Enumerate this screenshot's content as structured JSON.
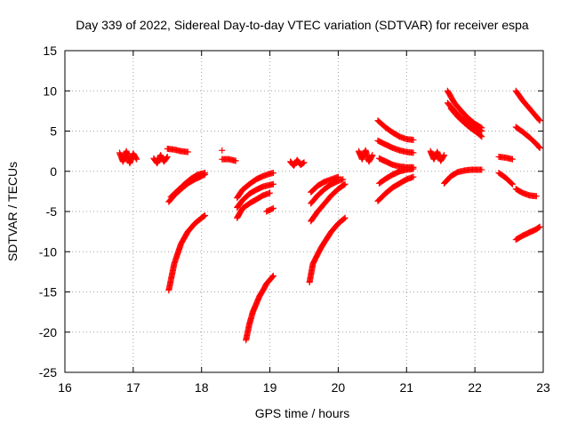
{
  "chart_data": {
    "type": "scatter",
    "title": "Day 339 of 2022, Sidereal Day-to-day VTEC variation (SDTVAR) for receiver espa",
    "xlabel": "GPS time / hours",
    "ylabel": "SDTVAR / TECUs",
    "xlim": [
      16,
      23
    ],
    "ylim": [
      -25,
      15
    ],
    "xticks": [
      "16",
      "17",
      "18",
      "19",
      "20",
      "21",
      "22",
      "23"
    ],
    "yticks": [
      "-25",
      "-20",
      "-15",
      "-10",
      "-5",
      "0",
      "5",
      "10",
      "15"
    ],
    "grid": true,
    "marker": "plus",
    "color": "#ff0000",
    "series": [
      {
        "name": "s1",
        "x": [
          16.8,
          16.85,
          16.9,
          16.95,
          17.0,
          17.05
        ],
        "y": [
          2.3,
          1.2,
          2.5,
          1.0,
          2.2,
          1.5
        ]
      },
      {
        "name": "s2",
        "x": [
          17.3,
          17.35,
          17.4,
          17.45,
          17.5
        ],
        "y": [
          1.6,
          1.0,
          2.0,
          1.2,
          1.8
        ]
      },
      {
        "name": "s3",
        "x": [
          17.5,
          17.6,
          17.7,
          17.8
        ],
        "y": [
          2.8,
          2.7,
          2.5,
          2.4
        ]
      },
      {
        "name": "s4",
        "x": [
          17.52,
          17.6,
          17.7,
          17.8,
          17.9,
          18.0,
          18.05
        ],
        "y": [
          -3.8,
          -3.0,
          -2.2,
          -1.5,
          -1.0,
          -0.6,
          -0.4
        ]
      },
      {
        "name": "s5",
        "x": [
          17.55,
          17.65,
          17.75,
          17.85,
          17.95,
          18.05
        ],
        "y": [
          -3.2,
          -2.4,
          -1.6,
          -0.9,
          -0.4,
          -0.2
        ]
      },
      {
        "name": "s6",
        "x": [
          17.52,
          17.6,
          17.7,
          17.8,
          17.9,
          18.0,
          18.05
        ],
        "y": [
          -14.8,
          -11.5,
          -9.0,
          -7.5,
          -6.5,
          -5.8,
          -5.5
        ]
      },
      {
        "name": "s7",
        "x": [
          18.3,
          18.4,
          18.5
        ],
        "y": [
          1.5,
          1.5,
          1.3
        ]
      },
      {
        "name": "s8",
        "x": [
          18.3
        ],
        "y": [
          2.6
        ]
      },
      {
        "name": "s9",
        "x": [
          18.52,
          18.6,
          18.7,
          18.8,
          18.9,
          19.0,
          19.05
        ],
        "y": [
          -3.3,
          -2.3,
          -1.6,
          -1.0,
          -0.6,
          -0.3,
          -0.2
        ]
      },
      {
        "name": "s10",
        "x": [
          18.52,
          18.6,
          18.7,
          18.8,
          18.9,
          19.0,
          19.05
        ],
        "y": [
          -4.5,
          -3.6,
          -2.8,
          -2.3,
          -1.9,
          -1.7,
          -1.6
        ]
      },
      {
        "name": "s11",
        "x": [
          18.52,
          18.6,
          18.7,
          18.8,
          18.9,
          19.0
        ],
        "y": [
          -5.8,
          -4.6,
          -4.0,
          -3.5,
          -3.0,
          -2.7
        ]
      },
      {
        "name": "s12",
        "x": [
          18.95,
          19.0,
          19.05
        ],
        "y": [
          -5.0,
          -4.8,
          -4.6
        ]
      },
      {
        "name": "s13",
        "x": [
          18.65,
          18.7,
          18.75,
          18.8,
          18.85,
          18.9,
          18.95,
          19.0,
          19.05
        ],
        "y": [
          -21.0,
          -19.0,
          -17.5,
          -16.5,
          -15.5,
          -14.8,
          -14.0,
          -13.5,
          -13.0
        ]
      },
      {
        "name": "s14",
        "x": [
          19.3,
          19.35,
          19.4,
          19.45,
          19.5
        ],
        "y": [
          1.2,
          0.7,
          1.4,
          0.8,
          1.1
        ]
      },
      {
        "name": "s15",
        "x": [
          19.6,
          19.7,
          19.8,
          19.9,
          20.0
        ],
        "y": [
          -2.6,
          -1.8,
          -1.3,
          -1.0,
          -0.7
        ]
      },
      {
        "name": "s16",
        "x": [
          19.6,
          19.7,
          19.8,
          19.9,
          20.0,
          20.07
        ],
        "y": [
          -4.0,
          -3.0,
          -2.2,
          -1.6,
          -1.2,
          -1.0
        ]
      },
      {
        "name": "s17",
        "x": [
          19.6,
          19.7,
          19.8,
          19.9,
          20.0,
          20.1
        ],
        "y": [
          -6.2,
          -5.0,
          -4.0,
          -3.0,
          -2.2,
          -1.6
        ]
      },
      {
        "name": "s18",
        "x": [
          19.58,
          19.63,
          19.7,
          19.75,
          19.8,
          19.9,
          20.0,
          20.1
        ],
        "y": [
          -13.8,
          -11.5,
          -10.3,
          -9.5,
          -8.8,
          -7.5,
          -6.5,
          -5.8
        ]
      },
      {
        "name": "s19",
        "x": [
          20.3,
          20.35,
          20.4,
          20.45,
          20.5
        ],
        "y": [
          2.5,
          1.5,
          2.6,
          1.2,
          2.0
        ]
      },
      {
        "name": "s20",
        "x": [
          20.58,
          20.7,
          20.8,
          20.9,
          21.0,
          21.1
        ],
        "y": [
          6.3,
          5.4,
          4.8,
          4.3,
          4.0,
          3.9
        ]
      },
      {
        "name": "s21",
        "x": [
          20.58,
          20.7,
          20.8,
          20.9,
          21.0,
          21.1
        ],
        "y": [
          3.8,
          3.3,
          2.9,
          2.6,
          2.4,
          2.3
        ]
      },
      {
        "name": "s22",
        "x": [
          20.6,
          20.7,
          20.8,
          20.9,
          21.0,
          21.1
        ],
        "y": [
          1.6,
          1.2,
          0.8,
          0.6,
          0.5,
          0.5
        ]
      },
      {
        "name": "s23",
        "x": [
          20.6,
          20.7,
          20.8,
          20.9,
          21.0,
          21.1
        ],
        "y": [
          -1.5,
          -0.9,
          -0.4,
          0.0,
          0.2,
          0.3
        ]
      },
      {
        "name": "s24",
        "x": [
          20.58,
          20.7,
          20.8,
          20.9,
          21.0,
          21.1
        ],
        "y": [
          -3.7,
          -2.7,
          -2.0,
          -1.5,
          -1.0,
          -0.7
        ]
      },
      {
        "name": "s25",
        "x": [
          21.35,
          21.4,
          21.45,
          21.5,
          21.55
        ],
        "y": [
          2.5,
          1.5,
          2.4,
          1.3,
          2.0
        ]
      },
      {
        "name": "s26",
        "x": [
          21.6,
          21.7,
          21.8,
          21.9,
          22.0,
          22.1
        ],
        "y": [
          10.0,
          8.5,
          7.5,
          6.6,
          5.9,
          5.4
        ]
      },
      {
        "name": "s27",
        "x": [
          21.6,
          21.7,
          21.8,
          21.9,
          22.0,
          22.1
        ],
        "y": [
          8.5,
          7.5,
          6.6,
          6.0,
          5.5,
          5.0
        ]
      },
      {
        "name": "s28",
        "x": [
          21.65,
          21.75,
          21.85,
          21.95,
          22.05,
          22.1
        ],
        "y": [
          7.8,
          6.8,
          6.0,
          5.3,
          4.7,
          4.3
        ]
      },
      {
        "name": "s29",
        "x": [
          21.55,
          21.65,
          21.75,
          21.85,
          21.95,
          22.05,
          22.1
        ],
        "y": [
          -1.5,
          -0.6,
          -0.1,
          0.1,
          0.2,
          0.2,
          0.2
        ]
      },
      {
        "name": "s30",
        "x": [
          22.35,
          22.45,
          22.55
        ],
        "y": [
          1.8,
          1.7,
          1.5
        ]
      },
      {
        "name": "s31",
        "x": [
          22.35,
          22.45,
          22.55
        ],
        "y": [
          -0.2,
          -0.8,
          -1.6
        ]
      },
      {
        "name": "s32",
        "x": [
          22.6,
          22.7,
          22.8,
          22.9
        ],
        "y": [
          -2.2,
          -2.7,
          -3.0,
          -3.1
        ]
      },
      {
        "name": "s33",
        "x": [
          22.6,
          22.7,
          22.8,
          22.9,
          22.95
        ],
        "y": [
          5.5,
          4.9,
          4.2,
          3.4,
          2.9
        ]
      },
      {
        "name": "s34",
        "x": [
          22.6,
          22.7,
          22.8,
          22.9,
          22.95
        ],
        "y": [
          10.0,
          8.8,
          7.8,
          6.8,
          6.3
        ]
      },
      {
        "name": "s35",
        "x": [
          22.6,
          22.7,
          22.8,
          22.9,
          22.95
        ],
        "y": [
          -8.5,
          -8.0,
          -7.6,
          -7.2,
          -6.9
        ]
      }
    ]
  }
}
